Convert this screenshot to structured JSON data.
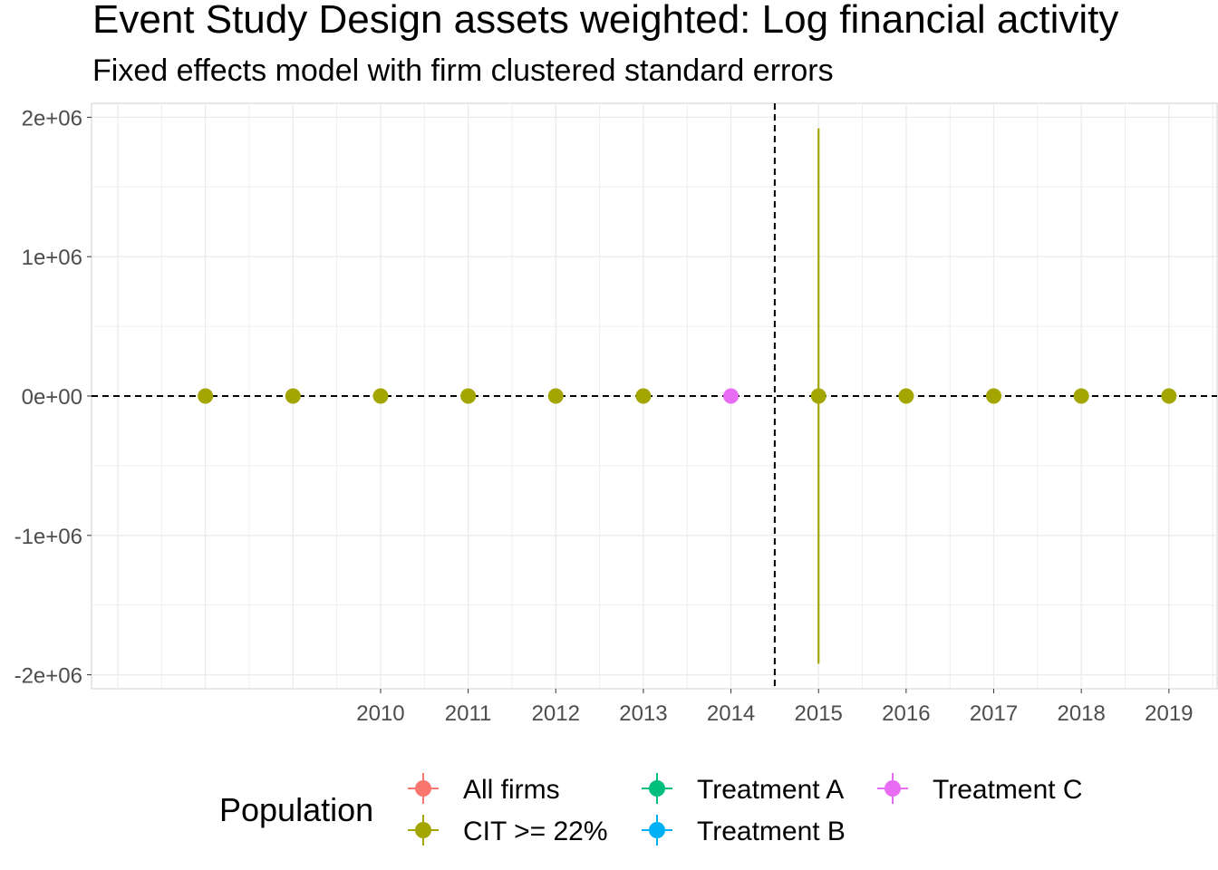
{
  "title": "Event Study Design assets weighted: Log financial activity",
  "subtitle": "Fixed effects model with firm clustered standard errors",
  "chart_data": {
    "type": "scatter",
    "title": "Event Study Design assets weighted: Log financial activity",
    "subtitle": "Fixed effects model with firm clustered standard errors",
    "xlabel": "",
    "ylabel": "",
    "xlim": [
      2006.7,
      2019.55
    ],
    "ylim": [
      -2100000,
      2100000
    ],
    "x_ticks": [
      2010,
      2011,
      2012,
      2013,
      2014,
      2015,
      2016,
      2017,
      2018,
      2019
    ],
    "y_ticks": [
      -2000000,
      -1000000,
      0,
      1000000,
      2000000
    ],
    "y_tick_labels": [
      "-2e+06",
      "-1e+06",
      "0e+00",
      "1e+06",
      "2e+06"
    ],
    "vline": 2014.5,
    "hline": 0,
    "grid": true,
    "legend": {
      "title": "Population",
      "position": "bottom",
      "entries": [
        {
          "name": "All firms",
          "color": "#F8766D"
        },
        {
          "name": "CIT >= 22%",
          "color": "#A3A500"
        },
        {
          "name": "Treatment A",
          "color": "#00BF7D"
        },
        {
          "name": "Treatment B",
          "color": "#00B0F6"
        },
        {
          "name": "Treatment C",
          "color": "#E76BF3"
        }
      ]
    },
    "series": [
      {
        "name": "Treatment C",
        "color": "#E76BF3",
        "points": [
          {
            "x": 2014,
            "y": 0,
            "ymin": 0,
            "ymax": 0
          }
        ]
      },
      {
        "name": "CIT >= 22%",
        "color": "#A3A500",
        "points": [
          {
            "x": 2008,
            "y": 0,
            "ymin": 0,
            "ymax": 0
          },
          {
            "x": 2009,
            "y": 0,
            "ymin": 0,
            "ymax": 0
          },
          {
            "x": 2010,
            "y": 0,
            "ymin": 0,
            "ymax": 0
          },
          {
            "x": 2011,
            "y": 0,
            "ymin": 0,
            "ymax": 0
          },
          {
            "x": 2012,
            "y": 0,
            "ymin": 0,
            "ymax": 0
          },
          {
            "x": 2013,
            "y": 0,
            "ymin": 0,
            "ymax": 0
          },
          {
            "x": 2015,
            "y": 0,
            "ymin": -1920000,
            "ymax": 1920000
          },
          {
            "x": 2016,
            "y": 0,
            "ymin": 0,
            "ymax": 0
          },
          {
            "x": 2017,
            "y": 0,
            "ymin": 0,
            "ymax": 0
          },
          {
            "x": 2018,
            "y": 0,
            "ymin": 0,
            "ymax": 0
          },
          {
            "x": 2019,
            "y": 0,
            "ymin": 0,
            "ymax": 0
          }
        ]
      }
    ]
  }
}
